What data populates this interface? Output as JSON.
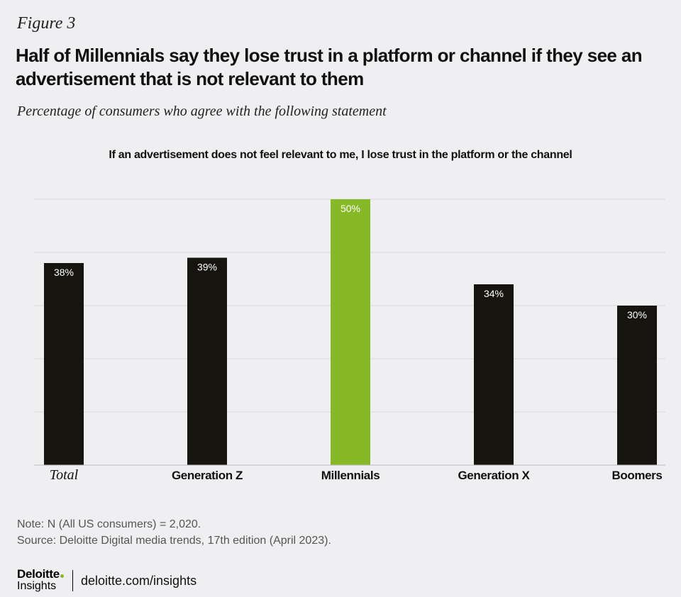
{
  "figure_label": "Figure 3",
  "title": "Half of Millennials say they lose trust in a platform or channel if they see an advertisement that is not relevant to them",
  "subtitle": "Percentage of consumers who agree with the following statement",
  "note": "Note: N (All US consumers) = 2,020.",
  "source": "Source: Deloitte Digital media trends, 17th edition (April 2023).",
  "footer": {
    "brand": "Deloitte",
    "brand_sub": "Insights",
    "link": "deloitte.com/insights"
  },
  "colors": {
    "bar": "#16140f",
    "highlight": "#86b827",
    "grid": "#d8d8dc",
    "axis": "#bdbdc2",
    "background": "#efeff1"
  },
  "chart_data": {
    "type": "bar",
    "title": "If an advertisement does not feel relevant to me, I lose trust in the platform or the channel",
    "categories": [
      "Total",
      "Generation Z",
      "Millennials",
      "Generation X",
      "Boomers"
    ],
    "values": [
      38,
      39,
      50,
      34,
      30
    ],
    "labels": [
      "38%",
      "39%",
      "50%",
      "34%",
      "30%"
    ],
    "highlight_category": "Millennials",
    "unit": "%",
    "ylim": [
      0,
      50
    ],
    "grid_step": 10,
    "grid": true,
    "xlabel": "",
    "ylabel": ""
  }
}
